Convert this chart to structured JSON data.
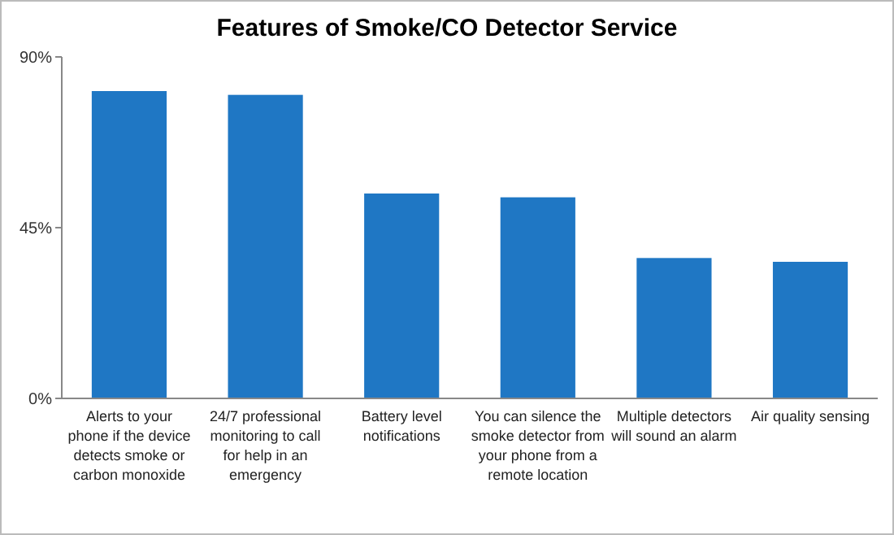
{
  "chart_data": {
    "type": "bar",
    "title": "Features of Smoke/CO Detector Service",
    "categories": [
      "Alerts to your phone if the device detects smoke or carbon monoxide",
      "24/7 professional monitoring to call for help in an emergency",
      "Battery level notifications",
      "You can silence the smoke detector from your phone from a remote location",
      "Multiple detectors will sound an alarm",
      "Air quality sensing"
    ],
    "values": [
      81,
      80,
      54,
      53,
      37,
      36
    ],
    "color": "#1f77c4",
    "ylim": [
      0,
      90
    ],
    "yticks": [
      {
        "value": 0,
        "label": "0%"
      },
      {
        "value": 45,
        "label": "45%"
      },
      {
        "value": 90,
        "label": "90%"
      }
    ]
  }
}
